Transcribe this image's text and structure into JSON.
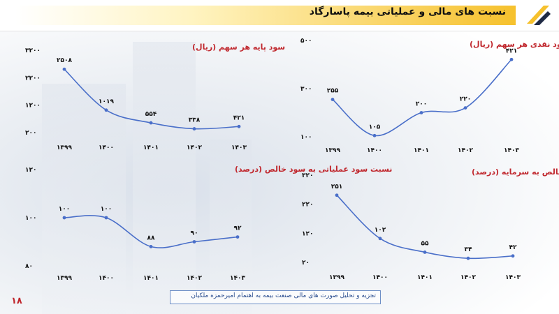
{
  "header": {
    "title": "نسبت های مالی و عملیاتی بیمه پاسارگاد"
  },
  "footer": {
    "text": "تجزیه و تحلیل صورت های مالی صنعت بیمه به اهتمام امیرحمزه ملکیان",
    "page": "۱۸"
  },
  "colors": {
    "line": "#4a6fc9",
    "title": "#c0272d",
    "value_blue": "#2b46a8",
    "value_red": "#c0272d",
    "accent": "#f6c12d"
  },
  "chart_data": [
    {
      "type": "line",
      "title": "سود پایه هر سهم (ریال)",
      "categories": [
        "۱۳۹۹",
        "۱۴۰۰",
        "۱۴۰۱",
        "۱۴۰۲",
        "۱۴۰۳"
      ],
      "values": [
        2508,
        1019,
        554,
        338,
        421
      ],
      "value_labels": [
        "۲۵۰۸",
        "۱۰۱۹",
        "۵۵۴",
        "۳۳۸",
        "۴۲۱"
      ],
      "label_color": "blue",
      "y_ticks": [
        "۳۲۰۰",
        "۲۲۰۰",
        "۱۲۰۰",
        "۲۰۰"
      ],
      "ylim": [
        200,
        3200
      ]
    },
    {
      "type": "line",
      "title": "سود نقدی هر سهم (ریال)",
      "categories": [
        "۱۳۹۹",
        "۱۴۰۰",
        "۱۴۰۱",
        "۱۴۰۲",
        "۱۴۰۳"
      ],
      "values": [
        255,
        105,
        200,
        220,
        421
      ],
      "value_labels": [
        "۲۵۵",
        "۱۰۵",
        "۲۰۰",
        "۲۲۰",
        "۴۲۱"
      ],
      "label_color": "red",
      "y_ticks": [
        "۵۰۰",
        "۳۰۰",
        "۱۰۰"
      ],
      "ylim": [
        100,
        500
      ]
    },
    {
      "type": "line",
      "title": "نسبت سود عملیاتی به سود خالص (درصد)",
      "categories": [
        "۱۳۹۹",
        "۱۴۰۰",
        "۱۴۰۱",
        "۱۴۰۲",
        "۱۴۰۳"
      ],
      "values": [
        100,
        100,
        88,
        90,
        92
      ],
      "value_labels": [
        "۱۰۰",
        "۱۰۰",
        "۸۸",
        "۹۰",
        "۹۲"
      ],
      "label_color": "blue",
      "y_ticks": [
        "۱۲۰",
        "۱۰۰",
        "۸۰"
      ],
      "ylim": [
        80,
        120
      ]
    },
    {
      "type": "line",
      "title": "نسبت سود (زیان) خالص به سرمایه (درصد)",
      "categories": [
        "۱۳۹۹",
        "۱۴۰۰",
        "۱۴۰۱",
        "۱۴۰۲",
        "۱۴۰۳"
      ],
      "values": [
        251,
        102,
        55,
        34,
        42
      ],
      "value_labels": [
        "۲۵۱",
        "۱۰۲",
        "۵۵",
        "۳۴",
        "۴۲"
      ],
      "label_color": "blue",
      "y_ticks": [
        "۳۲۰",
        "۲۲۰",
        "۱۲۰",
        "۲۰"
      ],
      "ylim": [
        20,
        320
      ]
    }
  ]
}
